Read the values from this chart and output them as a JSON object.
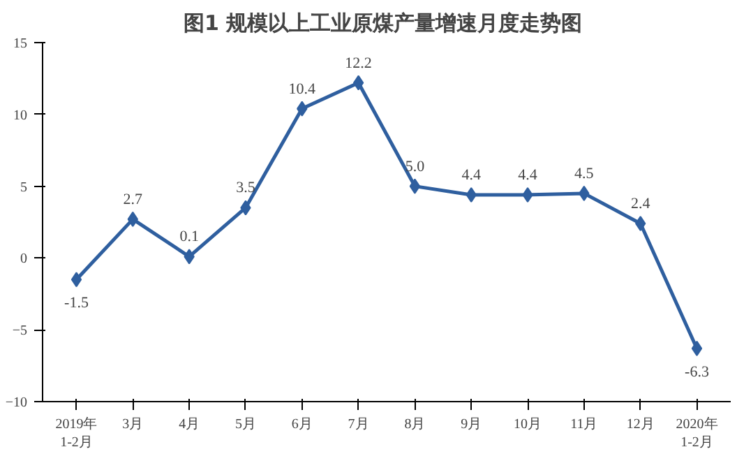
{
  "chart_data": {
    "type": "line",
    "title": "图1  规模以上工业原煤产量增速月度走势图",
    "categories": [
      "2019年\n1-2月",
      "3月",
      "4月",
      "5月",
      "6月",
      "7月",
      "8月",
      "9月",
      "10月",
      "11月",
      "12月",
      "2020年\n1-2月"
    ],
    "values": [
      -1.5,
      2.7,
      0.1,
      3.5,
      10.4,
      12.2,
      5.0,
      4.4,
      4.4,
      4.5,
      2.4,
      -6.3
    ],
    "value_labels": [
      "-1.5",
      "2.7",
      "0.1",
      "3.5",
      "10.4",
      "12.2",
      "5.0",
      "4.4",
      "4.4",
      "4.5",
      "2.4",
      "-6.3"
    ],
    "color": "#2f5f9f",
    "marker": "diamond",
    "ylim": [
      -10,
      15
    ],
    "yticks": [
      -10,
      -5,
      0,
      5,
      10,
      15
    ],
    "grid": false
  }
}
